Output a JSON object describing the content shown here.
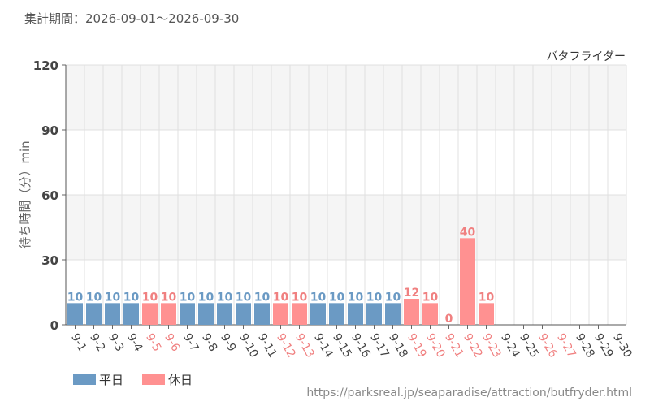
{
  "header": {
    "period": "集計期間：2026-09-01～2026-09-30"
  },
  "footer": {
    "url": "https://parksreal.jp/seaparadise/attraction/butfryder.html"
  },
  "colors": {
    "weekday": "#6b9ac4",
    "holiday": "#ff9191",
    "weekday_text": "#6b9ac4",
    "holiday_text": "#f08080",
    "band": "#f5f5f5",
    "grid": "#e0e0e0"
  },
  "chart_data": {
    "type": "bar",
    "title": "バタフライダー",
    "ylabel": "待ち時間（分）min",
    "ylim": [
      0,
      120
    ],
    "yticks": [
      0,
      30,
      60,
      90,
      120
    ],
    "legend": [
      {
        "label": "平日",
        "kind": "weekday"
      },
      {
        "label": "休日",
        "kind": "holiday"
      }
    ],
    "categories": [
      "9-1",
      "9-2",
      "9-3",
      "9-4",
      "9-5",
      "9-6",
      "9-7",
      "9-8",
      "9-9",
      "9-10",
      "9-11",
      "9-12",
      "9-13",
      "9-14",
      "9-15",
      "9-16",
      "9-17",
      "9-18",
      "9-19",
      "9-20",
      "9-21",
      "9-22",
      "9-23",
      "9-24",
      "9-25",
      "9-26",
      "9-27",
      "9-28",
      "9-29",
      "9-30"
    ],
    "day_type": [
      "weekday",
      "weekday",
      "weekday",
      "weekday",
      "holiday",
      "holiday",
      "weekday",
      "weekday",
      "weekday",
      "weekday",
      "weekday",
      "holiday",
      "holiday",
      "weekday",
      "weekday",
      "weekday",
      "weekday",
      "weekday",
      "holiday",
      "holiday",
      "holiday",
      "holiday",
      "holiday",
      "weekday",
      "weekday",
      "holiday",
      "holiday",
      "weekday",
      "weekday",
      "weekday"
    ],
    "values": [
      10,
      10,
      10,
      10,
      10,
      10,
      10,
      10,
      10,
      10,
      10,
      10,
      10,
      10,
      10,
      10,
      10,
      10,
      12,
      10,
      0,
      40,
      10,
      null,
      null,
      null,
      null,
      null,
      null,
      null
    ]
  }
}
